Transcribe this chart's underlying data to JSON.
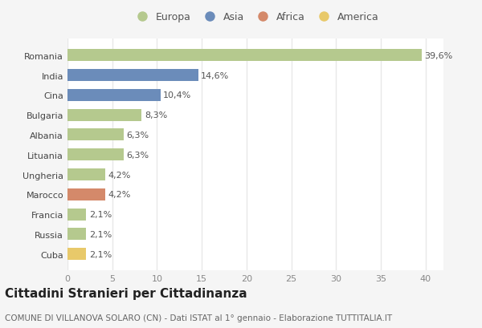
{
  "countries": [
    "Romania",
    "India",
    "Cina",
    "Bulgaria",
    "Albania",
    "Lituania",
    "Ungheria",
    "Marocco",
    "Francia",
    "Russia",
    "Cuba"
  ],
  "values": [
    39.6,
    14.6,
    10.4,
    8.3,
    6.3,
    6.3,
    4.2,
    4.2,
    2.1,
    2.1,
    2.1
  ],
  "labels": [
    "39,6%",
    "14,6%",
    "10,4%",
    "8,3%",
    "6,3%",
    "6,3%",
    "4,2%",
    "4,2%",
    "2,1%",
    "2,1%",
    "2,1%"
  ],
  "bar_colors": [
    "#b5c98e",
    "#6b8cba",
    "#6b8cba",
    "#b5c98e",
    "#b5c98e",
    "#b5c98e",
    "#b5c98e",
    "#d4896a",
    "#b5c98e",
    "#b5c98e",
    "#e8c96a"
  ],
  "legend_labels": [
    "Europa",
    "Asia",
    "Africa",
    "America"
  ],
  "legend_colors": [
    "#b5c98e",
    "#6b8cba",
    "#d4896a",
    "#e8c96a"
  ],
  "title": "Cittadini Stranieri per Cittadinanza",
  "subtitle": "COMUNE DI VILLANOVA SOLARO (CN) - Dati ISTAT al 1° gennaio - Elaborazione TUTTITALIA.IT",
  "xlim": [
    0,
    42
  ],
  "xticks": [
    0,
    5,
    10,
    15,
    20,
    25,
    30,
    35,
    40
  ],
  "plot_bg": "#ffffff",
  "fig_bg": "#f5f5f5",
  "grid_color": "#e8e8e8",
  "title_fontsize": 11,
  "subtitle_fontsize": 7.5,
  "label_fontsize": 8,
  "tick_fontsize": 8,
  "legend_fontsize": 9
}
